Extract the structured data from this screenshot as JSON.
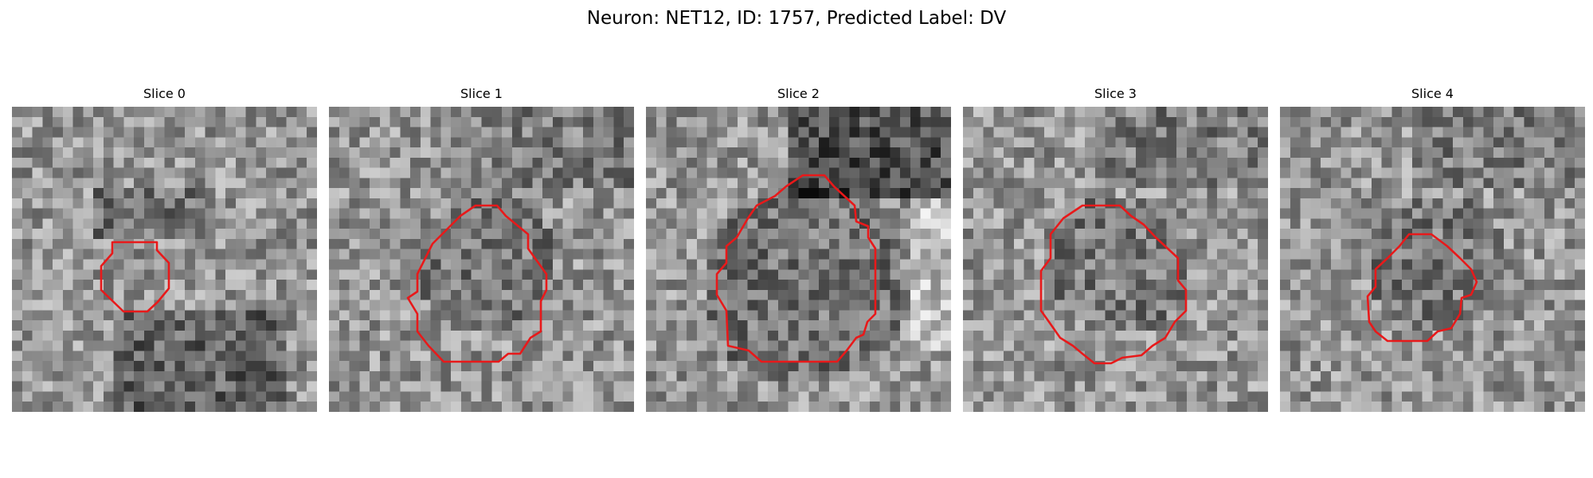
{
  "figure": {
    "title": "Neuron: NET12, ID: 1757, Predicted Label: DV",
    "contour_color": "#ff0000",
    "colormap": "grayscale"
  },
  "slices": [
    {
      "label": "Slice 0"
    },
    {
      "label": "Slice 1"
    },
    {
      "label": "Slice 2"
    },
    {
      "label": "Slice 3"
    },
    {
      "label": "Slice 4"
    }
  ]
}
